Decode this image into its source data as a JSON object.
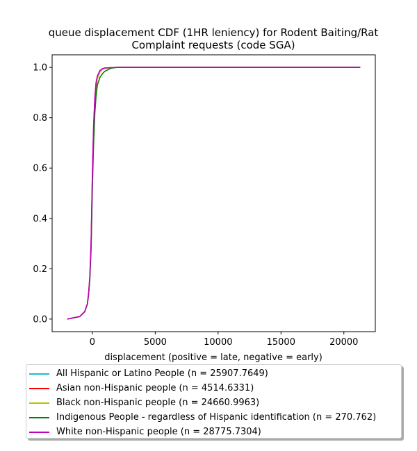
{
  "chart_data": {
    "type": "line",
    "title": "queue displacement CDF (1HR leniency) for Rodent Baiting/Rat Complaint  requests (code SGA)",
    "title_lines": [
      "queue displacement CDF (1HR leniency) for Rodent Baiting/Rat",
      "Complaint  requests (code SGA)"
    ],
    "xlabel": "displacement (positive = late, negative = early)",
    "ylabel": "",
    "xlim": [
      -3200,
      22500
    ],
    "ylim": [
      -0.05,
      1.05
    ],
    "xticks": [
      0,
      5000,
      10000,
      15000,
      20000
    ],
    "xtick_labels": [
      "0",
      "5000",
      "10000",
      "15000",
      "20000"
    ],
    "yticks": [
      0.0,
      0.2,
      0.4,
      0.6,
      0.8,
      1.0
    ],
    "ytick_labels": [
      "0.0",
      "0.2",
      "0.4",
      "0.6",
      "0.8",
      "1.0"
    ],
    "grid": false,
    "legend_position": "below",
    "series": [
      {
        "name": "All Hispanic or Latino People (n = 25907.7649)",
        "color": "#17becf",
        "x": [
          -2000,
          -1000,
          -600,
          -400,
          -300,
          -200,
          -100,
          0,
          100,
          200,
          300,
          400,
          600,
          800,
          1000,
          1500,
          2000,
          5000,
          21300
        ],
        "y": [
          0.0,
          0.01,
          0.03,
          0.06,
          0.1,
          0.17,
          0.3,
          0.55,
          0.75,
          0.87,
          0.93,
          0.96,
          0.985,
          0.993,
          0.997,
          0.999,
          1.0,
          1.0,
          1.0
        ]
      },
      {
        "name": "Asian non-Hispanic people (n = 4514.6331)",
        "color": "#ff0000",
        "x": [
          -2000,
          -1000,
          -600,
          -400,
          -300,
          -200,
          -100,
          0,
          100,
          200,
          300,
          400,
          600,
          800,
          1000,
          1500,
          2000,
          5000,
          21300
        ],
        "y": [
          0.0,
          0.01,
          0.03,
          0.06,
          0.1,
          0.17,
          0.3,
          0.56,
          0.76,
          0.88,
          0.94,
          0.965,
          0.987,
          0.994,
          0.997,
          0.999,
          1.0,
          1.0,
          1.0
        ]
      },
      {
        "name": "Black non-Hispanic people (n = 24660.9963)",
        "color": "#bfbf00",
        "x": [
          -2000,
          -1000,
          -600,
          -400,
          -300,
          -200,
          -100,
          0,
          100,
          200,
          300,
          400,
          600,
          800,
          1000,
          1500,
          2000,
          5000,
          21300
        ],
        "y": [
          0.0,
          0.01,
          0.03,
          0.06,
          0.1,
          0.17,
          0.3,
          0.55,
          0.74,
          0.86,
          0.92,
          0.955,
          0.982,
          0.992,
          0.996,
          0.999,
          1.0,
          1.0,
          1.0
        ]
      },
      {
        "name": "Indigenous People - regardless of Hispanic identification (n = 270.762)",
        "color": "#008000",
        "x": [
          -2000,
          -1000,
          -600,
          -400,
          -300,
          -200,
          -100,
          0,
          100,
          200,
          300,
          400,
          600,
          800,
          1000,
          1500,
          2000,
          5000,
          21300
        ],
        "y": [
          0.0,
          0.01,
          0.03,
          0.06,
          0.1,
          0.16,
          0.28,
          0.52,
          0.7,
          0.82,
          0.89,
          0.93,
          0.96,
          0.975,
          0.985,
          0.997,
          1.0,
          1.0,
          1.0
        ]
      },
      {
        "name": "White non-Hispanic people (n = 28775.7304)",
        "color": "#bf00bf",
        "x": [
          -2000,
          -1000,
          -600,
          -400,
          -300,
          -200,
          -100,
          0,
          100,
          200,
          300,
          400,
          600,
          800,
          1000,
          1500,
          2000,
          5000,
          21300
        ],
        "y": [
          0.0,
          0.01,
          0.03,
          0.06,
          0.1,
          0.17,
          0.31,
          0.57,
          0.77,
          0.88,
          0.94,
          0.965,
          0.988,
          0.995,
          0.998,
          0.999,
          1.0,
          1.0,
          1.0
        ]
      }
    ]
  }
}
